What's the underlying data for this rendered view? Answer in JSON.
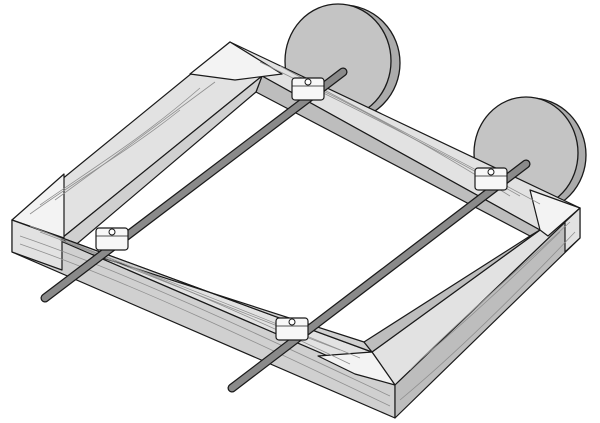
{
  "colors": {
    "outline": "#1a1a1a",
    "wood_light": "#e2e2e2",
    "wood_mid": "#d0d0d0",
    "wood_dark": "#bdbdbd",
    "wood_grain": "#8f8f8f",
    "gusset": "#f3f3f3",
    "wheel_face": "#c4c4c4",
    "wheel_rim": "#ababab",
    "axle": "#8a8a8a",
    "clamp": "#f7f7f7"
  },
  "parts": {
    "frame": {
      "sides": 4,
      "corner_gussets": 4
    },
    "axles": 2,
    "wheels": 2,
    "clamps": 4
  }
}
